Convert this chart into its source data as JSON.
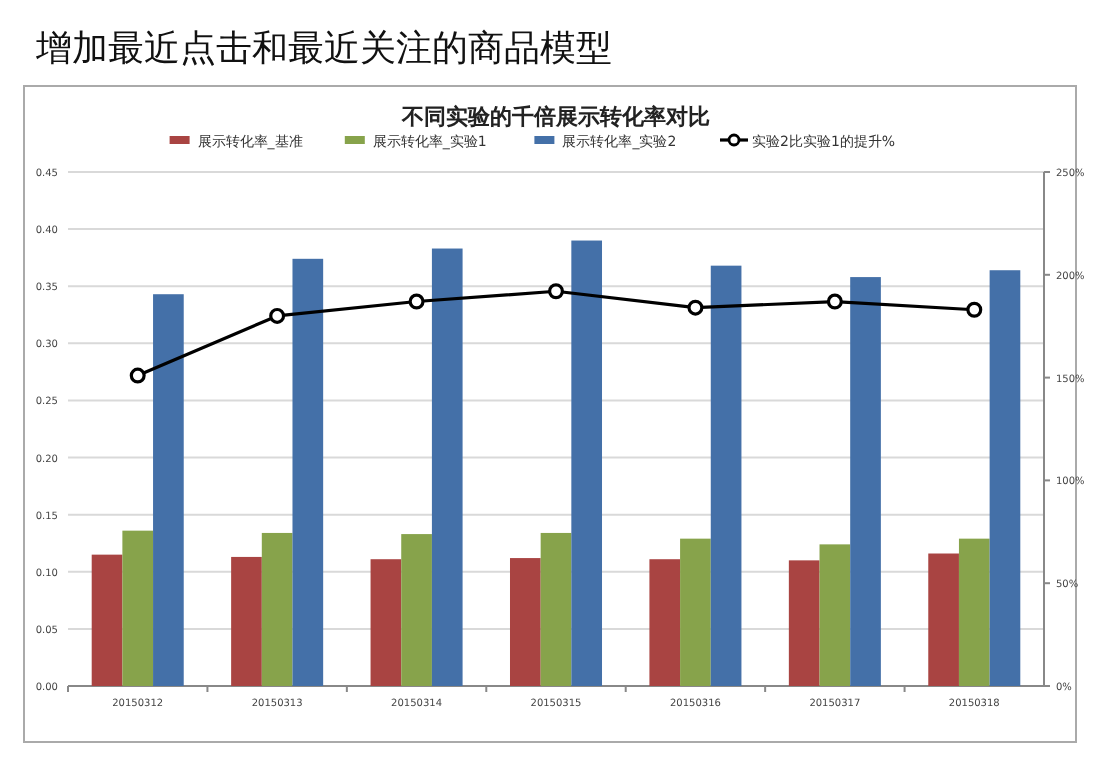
{
  "chart_data": {
    "type": "bar",
    "title": "增加最近点击和最近关注的商品模型",
    "subtitle": "不同实验的千倍展示转化率对比",
    "categories": [
      "20150312",
      "20150313",
      "20150314",
      "20150315",
      "20150316",
      "20150317",
      "20150318"
    ],
    "series": [
      {
        "name": "展示转化率_基准",
        "color": "#a94442",
        "values": [
          0.115,
          0.113,
          0.111,
          0.112,
          0.111,
          0.11,
          0.116
        ]
      },
      {
        "name": "展示转化率_实验1",
        "color": "#87a34b",
        "values": [
          0.136,
          0.134,
          0.133,
          0.134,
          0.129,
          0.124,
          0.129
        ]
      },
      {
        "name": "展示转化率_实验2",
        "color": "#4470a8",
        "values": [
          0.343,
          0.374,
          0.383,
          0.39,
          0.368,
          0.358,
          0.364
        ]
      },
      {
        "name": "实验2比实验1的提升%",
        "type": "line",
        "axis": "y2",
        "color": "#000000",
        "marker": "circle",
        "values": [
          151,
          180,
          187,
          192,
          184,
          187,
          183
        ]
      }
    ],
    "ylim": [
      0,
      0.45
    ],
    "yticks": [
      {
        "value": 0,
        "label": "0.00"
      },
      {
        "value": 0.05,
        "label": "0.05"
      },
      {
        "value": 0.1,
        "label": "0.10"
      },
      {
        "value": 0.15,
        "label": "0.15"
      },
      {
        "value": 0.2,
        "label": "0.20"
      },
      {
        "value": 0.25,
        "label": "0.25"
      },
      {
        "value": 0.3,
        "label": "0.30"
      },
      {
        "value": 0.35,
        "label": "0.35"
      },
      {
        "value": 0.4,
        "label": "0.40"
      },
      {
        "value": 0.45,
        "label": "0.45"
      }
    ],
    "y2lim": [
      0,
      250
    ],
    "y2ticks": [
      {
        "value": 0,
        "label": "0%"
      },
      {
        "value": 50,
        "label": "50%"
      },
      {
        "value": 100,
        "label": "100%"
      },
      {
        "value": 150,
        "label": "150%"
      },
      {
        "value": 200,
        "label": "200%"
      },
      {
        "value": 250,
        "label": "250%"
      }
    ],
    "grid": "y",
    "legend": "top"
  }
}
